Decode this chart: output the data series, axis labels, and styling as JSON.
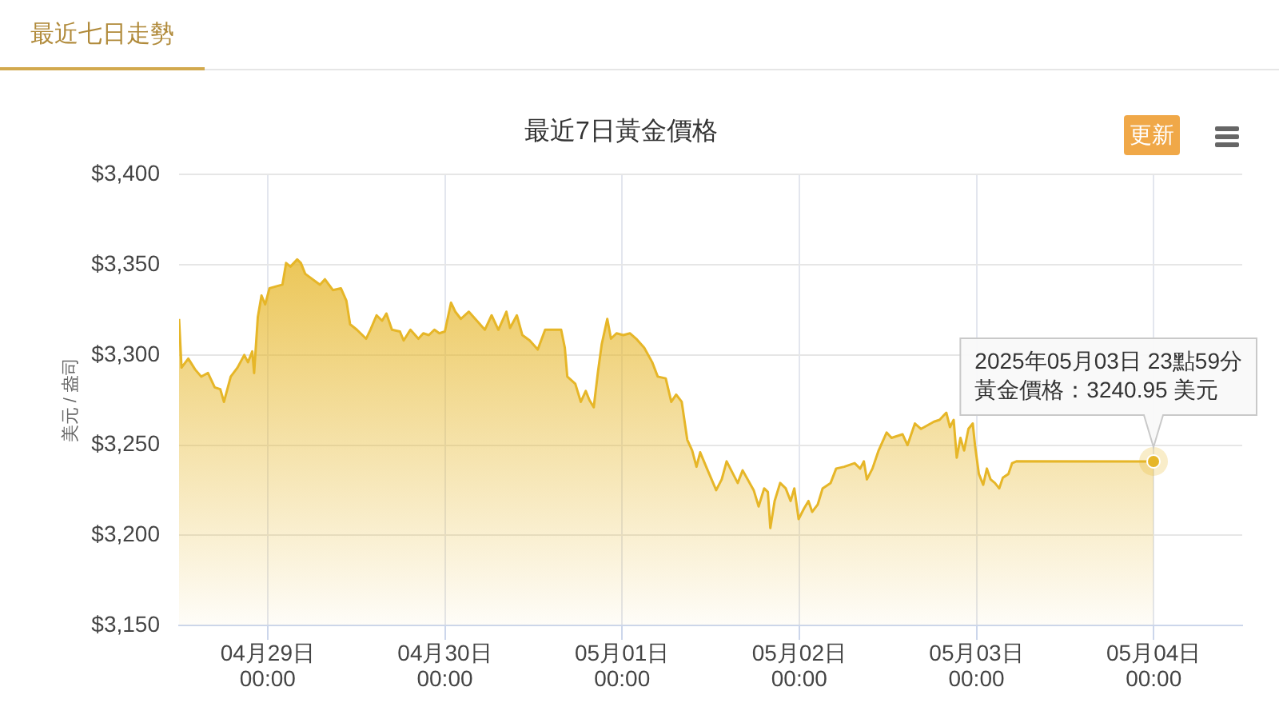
{
  "chart_data": {
    "type": "area",
    "title": "最近7日黃金價格",
    "ylabel": "美元 / 盎司",
    "color": "#e6b628",
    "marker": "none",
    "grid": true,
    "xlim": [
      "2025-04-28T12:00",
      "2025-05-04T12:00"
    ],
    "xticks": [
      {
        "value": "2025-04-29T00:00",
        "label": "04月29日\n00:00"
      },
      {
        "value": "2025-04-30T00:00",
        "label": "04月30日\n00:00"
      },
      {
        "value": "2025-05-01T00:00",
        "label": "05月01日\n00:00"
      },
      {
        "value": "2025-05-02T00:00",
        "label": "05月02日\n00:00"
      },
      {
        "value": "2025-05-03T00:00",
        "label": "05月03日\n00:00"
      },
      {
        "value": "2025-05-04T00:00",
        "label": "05月04日\n00:00"
      }
    ],
    "ylim": [
      3150,
      3400
    ],
    "yticks": [
      {
        "value": 3150,
        "label": "$3,150"
      },
      {
        "value": 3200,
        "label": "$3,200"
      },
      {
        "value": 3250,
        "label": "$3,250"
      },
      {
        "value": 3300,
        "label": "$3,300"
      },
      {
        "value": 3350,
        "label": "$3,350"
      },
      {
        "value": 3400,
        "label": "$3,400"
      }
    ],
    "x": [
      "2025-04-28T12:00",
      "2025-04-28T12:20",
      "2025-04-28T13:15",
      "2025-04-28T14:10",
      "2025-04-28T15:00",
      "2025-04-28T15:55",
      "2025-04-28T16:50",
      "2025-04-28T17:35",
      "2025-04-28T18:05",
      "2025-04-28T19:00",
      "2025-04-28T19:55",
      "2025-04-28T20:50",
      "2025-04-28T21:20",
      "2025-04-28T21:55",
      "2025-04-28T22:10",
      "2025-04-28T22:40",
      "2025-04-28T23:10",
      "2025-04-28T23:40",
      "2025-04-29T00:15",
      "2025-04-29T02:00",
      "2025-04-29T02:30",
      "2025-04-29T03:05",
      "2025-04-29T04:00",
      "2025-04-29T04:30",
      "2025-04-29T05:05",
      "2025-04-29T07:05",
      "2025-04-29T07:45",
      "2025-04-29T08:50",
      "2025-04-29T09:55",
      "2025-04-29T10:40",
      "2025-04-29T11:10",
      "2025-04-29T12:05",
      "2025-04-29T13:20",
      "2025-04-29T13:55",
      "2025-04-29T14:45",
      "2025-04-29T15:30",
      "2025-04-29T16:05",
      "2025-04-29T16:50",
      "2025-04-29T17:55",
      "2025-04-29T18:25",
      "2025-04-29T19:20",
      "2025-04-29T20:25",
      "2025-04-29T21:05",
      "2025-04-29T21:50",
      "2025-04-29T22:35",
      "2025-04-29T23:15",
      "2025-04-30T00:00",
      "2025-04-30T00:50",
      "2025-04-30T01:25",
      "2025-04-30T02:10",
      "2025-04-30T03:15",
      "2025-04-30T05:25",
      "2025-04-30T06:20",
      "2025-04-30T07:15",
      "2025-04-30T08:20",
      "2025-04-30T08:50",
      "2025-04-30T09:45",
      "2025-04-30T10:30",
      "2025-04-30T11:30",
      "2025-04-30T12:35",
      "2025-04-30T13:35",
      "2025-04-30T15:45",
      "2025-04-30T16:15",
      "2025-04-30T16:35",
      "2025-04-30T17:40",
      "2025-04-30T18:25",
      "2025-04-30T19:05",
      "2025-04-30T19:35",
      "2025-04-30T20:10",
      "2025-04-30T20:45",
      "2025-04-30T21:15",
      "2025-04-30T22:00",
      "2025-04-30T22:30",
      "2025-04-30T23:15",
      "2025-05-01T00:10",
      "2025-05-01T01:05",
      "2025-05-01T01:55",
      "2025-05-01T03:00",
      "2025-05-01T04:05",
      "2025-05-01T04:50",
      "2025-05-01T05:55",
      "2025-05-01T06:40",
      "2025-05-01T07:20",
      "2025-05-01T08:05",
      "2025-05-01T08:50",
      "2025-05-01T09:30",
      "2025-05-01T10:05",
      "2025-05-01T10:35",
      "2025-05-01T11:30",
      "2025-05-01T12:45",
      "2025-05-01T13:30",
      "2025-05-01T14:10",
      "2025-05-01T14:55",
      "2025-05-01T15:40",
      "2025-05-01T16:20",
      "2025-05-01T17:50",
      "2025-05-01T18:30",
      "2025-05-01T19:15",
      "2025-05-01T19:45",
      "2025-05-01T20:05",
      "2025-05-01T20:40",
      "2025-05-01T21:25",
      "2025-05-01T22:10",
      "2025-05-01T22:50",
      "2025-05-01T23:20",
      "2025-05-01T23:55",
      "2025-05-02T00:40",
      "2025-05-02T01:15",
      "2025-05-02T01:45",
      "2025-05-02T02:30",
      "2025-05-02T03:10",
      "2025-05-02T04:15",
      "2025-05-02T05:00",
      "2025-05-02T06:05",
      "2025-05-02T07:30",
      "2025-05-02T08:15",
      "2025-05-02T08:45",
      "2025-05-02T09:10",
      "2025-05-02T09:55",
      "2025-05-02T10:45",
      "2025-05-02T11:50",
      "2025-05-02T12:30",
      "2025-05-02T14:00",
      "2025-05-02T14:40",
      "2025-05-02T15:40",
      "2025-05-02T16:30",
      "2025-05-02T18:15",
      "2025-05-02T19:00",
      "2025-05-02T19:55",
      "2025-05-02T20:25",
      "2025-05-02T20:55",
      "2025-05-02T21:20",
      "2025-05-02T21:50",
      "2025-05-02T22:20",
      "2025-05-02T22:55",
      "2025-05-02T23:30",
      "2025-05-02T23:50",
      "2025-05-03T00:20",
      "2025-05-03T00:55",
      "2025-05-03T01:25",
      "2025-05-03T01:55",
      "2025-05-03T02:30",
      "2025-05-03T03:05",
      "2025-05-03T03:35",
      "2025-05-03T04:20",
      "2025-05-03T04:50",
      "2025-05-03T05:25",
      "2025-05-03T23:59"
    ],
    "values": [
      3320,
      3293,
      3298,
      3292,
      3288,
      3290,
      3282,
      3281,
      3274,
      3288,
      3293,
      3300,
      3296,
      3302,
      3290,
      3321,
      3333,
      3328,
      3337,
      3339,
      3351,
      3349,
      3353,
      3351,
      3345,
      3339,
      3342,
      3336,
      3337,
      3330,
      3317,
      3314,
      3309,
      3314,
      3322,
      3319,
      3323,
      3314,
      3313,
      3308,
      3314,
      3309,
      3312,
      3311,
      3314,
      3312,
      3313,
      3329,
      3324,
      3320,
      3324,
      3314,
      3322,
      3314,
      3324,
      3315,
      3322,
      3311,
      3308,
      3303,
      3314,
      3314,
      3304,
      3288,
      3284,
      3274,
      3280,
      3275,
      3271,
      3291,
      3306,
      3320,
      3309,
      3312,
      3311,
      3312,
      3309,
      3304,
      3296,
      3288,
      3287,
      3274,
      3278,
      3274,
      3253,
      3247,
      3238,
      3246,
      3237,
      3225,
      3231,
      3241,
      3235,
      3229,
      3236,
      3225,
      3216,
      3226,
      3224,
      3204,
      3219,
      3229,
      3226,
      3219,
      3226,
      3209,
      3215,
      3219,
      3213,
      3217,
      3226,
      3229,
      3237,
      3238,
      3240,
      3237,
      3241,
      3231,
      3237,
      3247,
      3257,
      3254,
      3256,
      3250,
      3262,
      3259,
      3263,
      3264,
      3268,
      3260,
      3264,
      3243,
      3254,
      3247,
      3259,
      3262,
      3249,
      3234,
      3228,
      3237,
      3231,
      3229,
      3226,
      3232,
      3234,
      3240,
      3241,
      3240.95
    ],
    "annotations": [
      "最近七日走勢",
      "更新",
      {
        "text": "2025年05月03日 23點59分黃金價格：3240.95 美元",
        "x": "2025-05-03T23:59",
        "y": 3240.95
      }
    ]
  }
}
